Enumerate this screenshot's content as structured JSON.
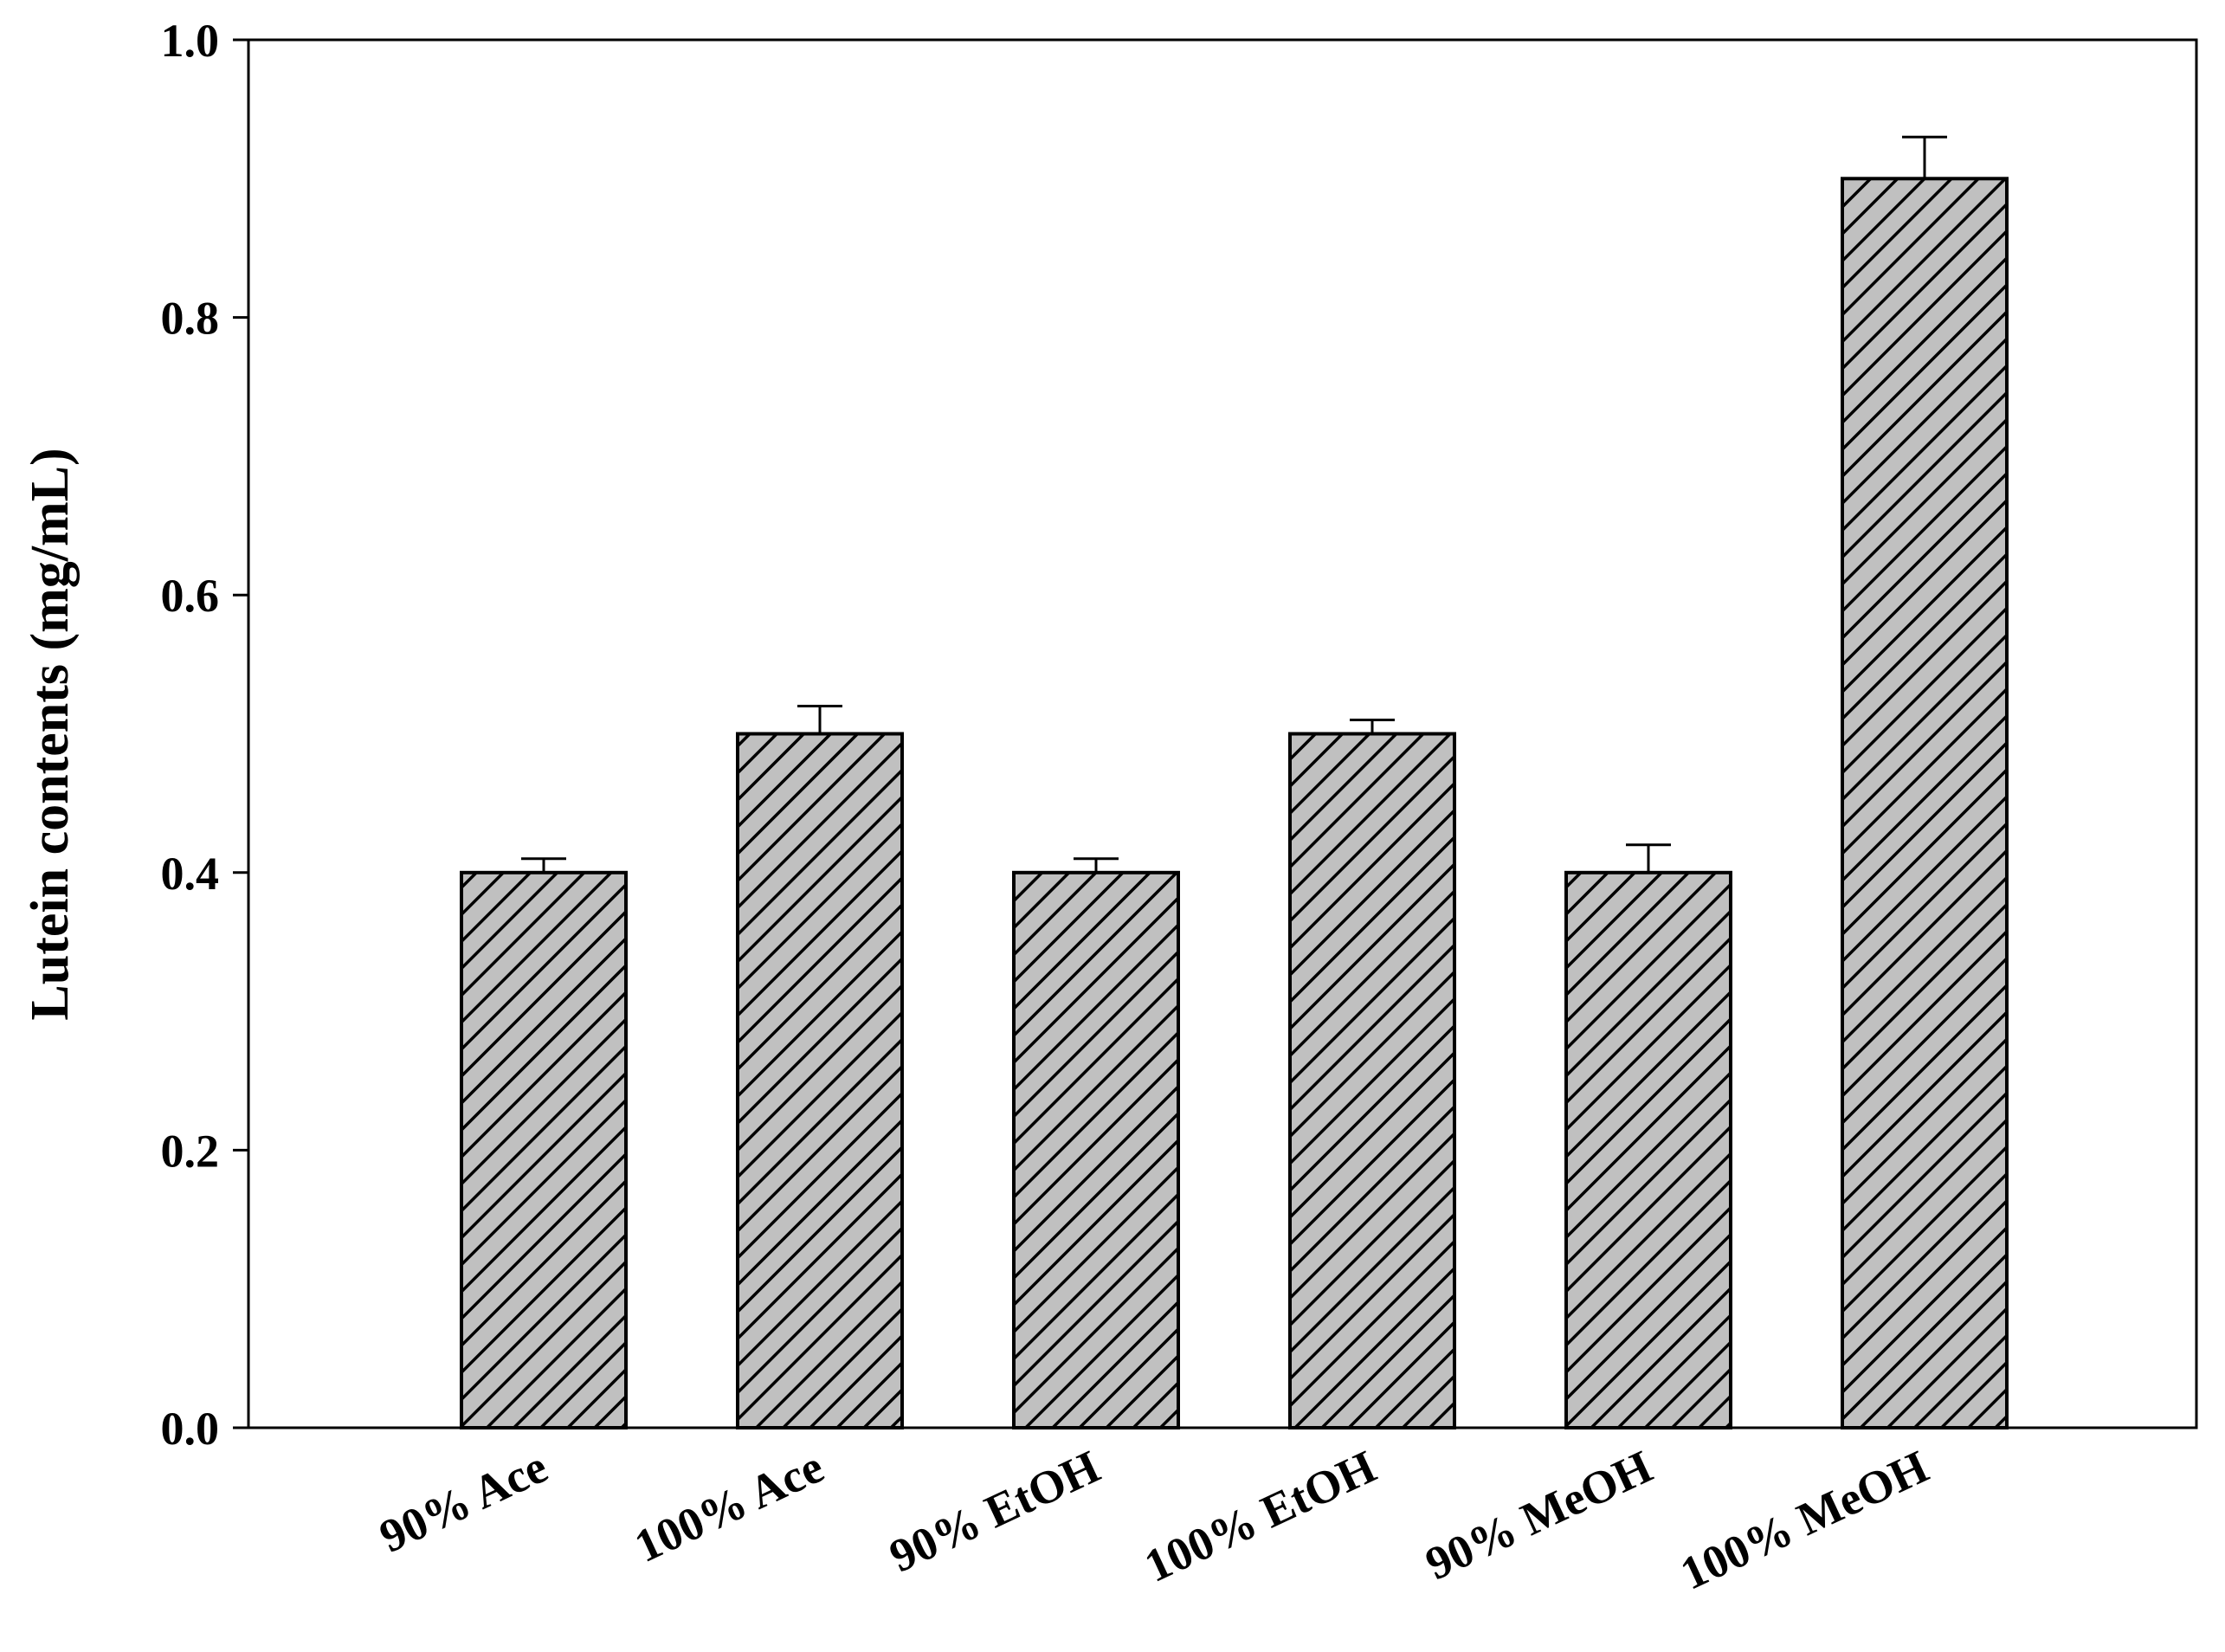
{
  "chart_data": {
    "type": "bar",
    "y_label": "Lutein contents (mg/mL)",
    "categories": [
      "90% Ace",
      "100% Ace",
      "90% EtOH",
      "100% EtOH",
      "90% MeOH",
      "100% MeOH"
    ],
    "values": [
      0.4,
      0.5,
      0.4,
      0.5,
      0.4,
      0.9
    ],
    "errors": [
      0.01,
      0.02,
      0.01,
      0.01,
      0.02,
      0.03
    ],
    "color": "#c0c0c0",
    "hatch": "#000000",
    "ylim": [
      0,
      1
    ],
    "yticks": [
      {
        "value": 0,
        "label": "0.0"
      },
      0.2,
      0.4,
      0.6,
      0.8,
      {
        "value": 1,
        "label": "1.0"
      }
    ],
    "grid": false
  }
}
